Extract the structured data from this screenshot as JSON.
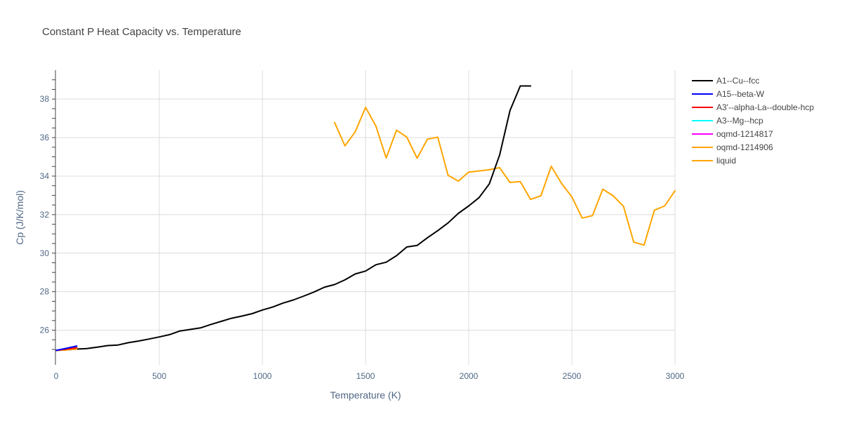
{
  "chart_data": {
    "type": "line",
    "title": "Constant P Heat Capacity vs. Temperature",
    "xlabel": "Temperature (K)",
    "ylabel": "Cp (J/K/mol)",
    "xlim": [
      0,
      3000
    ],
    "ylim": [
      24.2,
      39.5
    ],
    "xticks": [
      0,
      500,
      1000,
      1500,
      2000,
      2500,
      3000
    ],
    "xtick_labels": [
      "0",
      "500",
      "1000",
      "1500",
      "2000",
      "2500",
      "3000"
    ],
    "yticks": [
      26,
      28,
      30,
      32,
      34,
      36,
      38
    ],
    "ytick_labels": [
      "26",
      "28",
      "30",
      "32",
      "34",
      "36",
      "38"
    ],
    "grid": true,
    "legend_position": "right",
    "series": [
      {
        "name": "A1--Cu--fcc",
        "color": "#000000",
        "x": [
          0,
          50,
          100,
          150,
          200,
          250,
          300,
          350,
          400,
          450,
          500,
          550,
          600,
          650,
          700,
          750,
          800,
          850,
          900,
          950,
          1000,
          1050,
          1100,
          1150,
          1200,
          1250,
          1300,
          1350,
          1400,
          1450,
          1500,
          1550,
          1600,
          1650,
          1700,
          1750,
          1800,
          1850,
          1900,
          1950,
          2000,
          2050,
          2100,
          2150,
          2200,
          2250,
          2300
        ],
        "y": [
          24.95,
          24.98,
          25.02,
          25.05,
          25.12,
          25.2,
          25.23,
          25.35,
          25.44,
          25.54,
          25.65,
          25.77,
          25.96,
          26.04,
          26.12,
          26.3,
          26.46,
          26.62,
          26.73,
          26.86,
          27.05,
          27.2,
          27.41,
          27.57,
          27.77,
          27.98,
          28.23,
          28.37,
          28.61,
          28.92,
          29.07,
          29.4,
          29.53,
          29.87,
          30.32,
          30.4,
          30.8,
          31.17,
          31.57,
          32.07,
          32.45,
          32.88,
          33.6,
          35.1,
          37.4,
          38.68,
          38.68
        ]
      },
      {
        "name": "A15--beta-W",
        "color": "#0000ff",
        "x": [
          0,
          50,
          100
        ],
        "y": [
          24.95,
          25.06,
          25.18
        ]
      },
      {
        "name": "A3'--alpha-La--double-hcp",
        "color": "#ff0000",
        "x": [
          0,
          50,
          100
        ],
        "y": [
          24.95,
          25.02,
          25.09
        ]
      },
      {
        "name": "A3--Mg--hcp",
        "color": "#00ffff",
        "x": [
          0,
          50,
          100
        ],
        "y": [
          24.95,
          25.03,
          25.11
        ]
      },
      {
        "name": "oqmd-1214817",
        "color": "#ff00ff",
        "x": [
          0,
          50,
          100
        ],
        "y": [
          24.95,
          25.04,
          25.14
        ]
      },
      {
        "name": "oqmd-1214906",
        "color": "#ffa500",
        "x": [
          0,
          50,
          100
        ],
        "y": [
          24.95,
          24.98,
          25.02
        ]
      },
      {
        "name": "liquid",
        "color": "#ffa500",
        "x": [
          1350,
          1400,
          1450,
          1500,
          1550,
          1600,
          1650,
          1700,
          1750,
          1800,
          1850,
          1900,
          1950,
          2000,
          2050,
          2100,
          2150,
          2200,
          2250,
          2300,
          2350,
          2400,
          2450,
          2500,
          2550,
          2600,
          2650,
          2700,
          2750,
          2800,
          2850,
          2900,
          2950,
          3000
        ],
        "y": [
          36.78,
          35.57,
          36.3,
          37.57,
          36.6,
          34.94,
          36.38,
          36.02,
          34.93,
          35.92,
          36.02,
          34.04,
          33.74,
          34.21,
          34.27,
          34.33,
          34.44,
          33.67,
          33.72,
          32.79,
          32.98,
          34.51,
          33.62,
          32.92,
          31.82,
          31.95,
          33.32,
          32.98,
          32.44,
          30.57,
          30.42,
          32.23,
          32.45,
          33.24
        ]
      }
    ]
  }
}
